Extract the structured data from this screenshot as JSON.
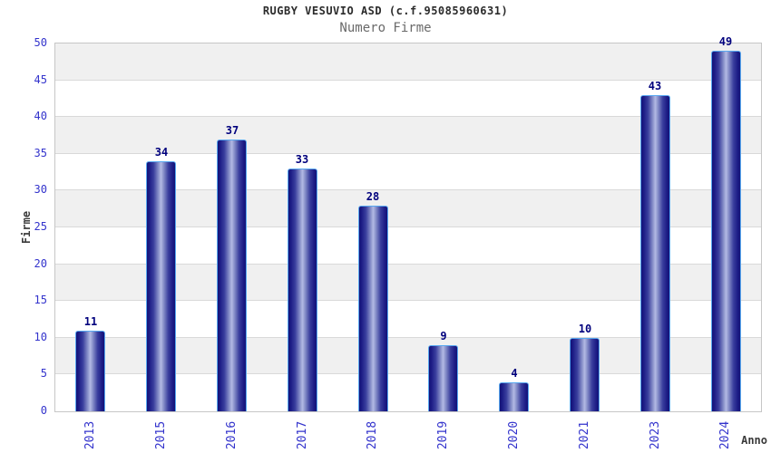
{
  "chart": {
    "title": "RUGBY VESUVIO ASD (c.f.95085960631)",
    "subtitle": "Numero Firme",
    "ylabel": "Firme",
    "xlabel": "Anno"
  },
  "chart_data": {
    "type": "bar",
    "title": "RUGBY VESUVIO ASD (c.f.95085960631)",
    "subtitle": "Numero Firme",
    "xlabel": "Anno",
    "ylabel": "Firme",
    "categories": [
      "2013",
      "2015",
      "2016",
      "2017",
      "2018",
      "2019",
      "2020",
      "2021",
      "2023",
      "2024"
    ],
    "values": [
      11,
      34,
      37,
      33,
      28,
      9,
      4,
      10,
      43,
      49
    ],
    "ylim": [
      0,
      50
    ],
    "ytick_step": 5,
    "yticks": [
      0,
      5,
      10,
      15,
      20,
      25,
      30,
      35,
      40,
      45,
      50
    ],
    "legend": "none",
    "grid": "horizontal-bands-alternating",
    "colors": {
      "bar_edge_dark": "#131378",
      "bar_center_light": "#b3bae4",
      "bar_border": "#58a8f0",
      "tick_label_blue": "#3333cc",
      "value_label_navy": "#00007d",
      "band_gray": "#f0f0f0",
      "band_white": "#ffffff",
      "gridline": "#d9d9d9",
      "plot_border": "#c6c6c6",
      "title_color": "#2b2b2b",
      "subtitle_color": "#6a6a6a",
      "axis_title_color": "#3a3a3a"
    }
  }
}
